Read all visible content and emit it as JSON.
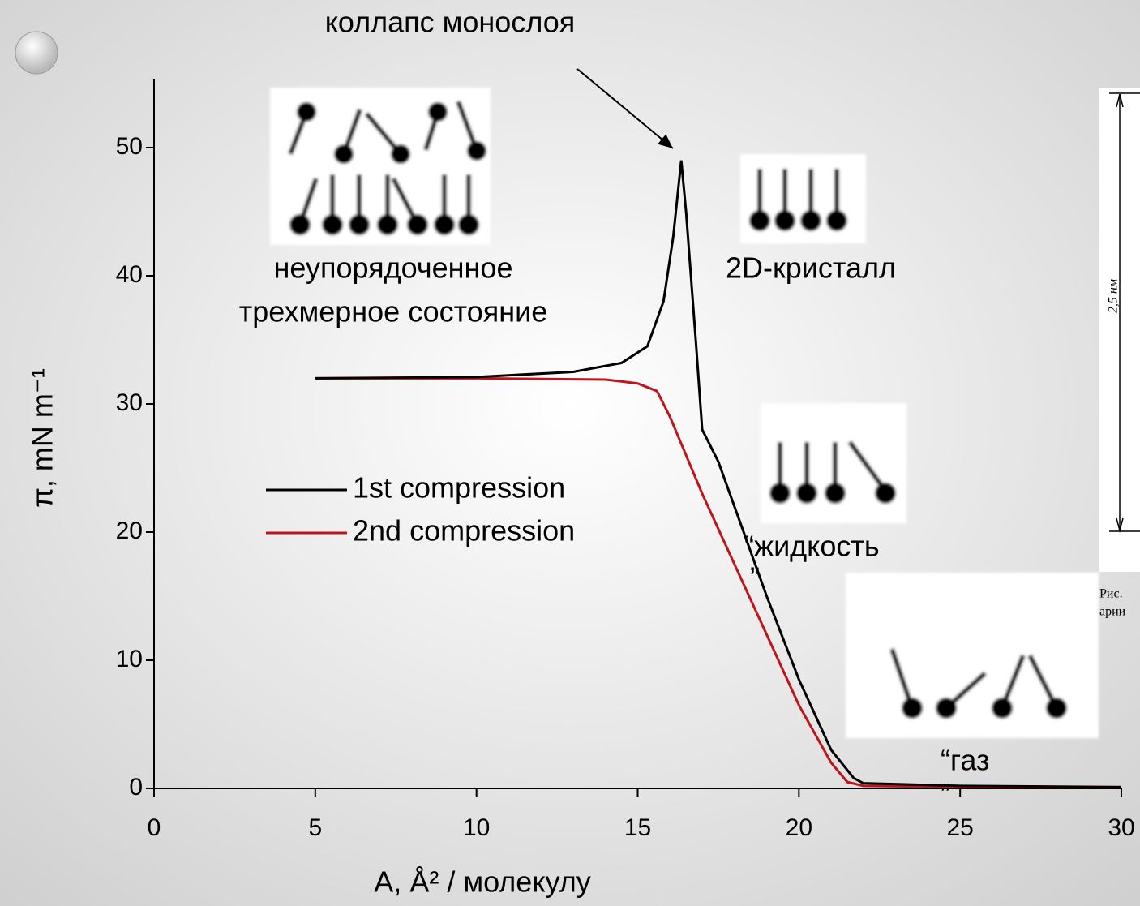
{
  "chart_data": {
    "type": "line",
    "x_label": "A, Å² / молекулу",
    "y_label": "π, mN m⁻¹",
    "xlim": [
      0,
      30
    ],
    "xticks": [
      0,
      5,
      10,
      15,
      20,
      25,
      30
    ],
    "ylim": [
      0,
      55
    ],
    "yticks": [
      0,
      10,
      20,
      30,
      40,
      50
    ],
    "legend": "left",
    "series": [
      {
        "name": "1st compression",
        "color": "#000000",
        "x": [
          5,
          10,
          13,
          14.5,
          15.3,
          15.8,
          16.1,
          16.35,
          16.5,
          16.8,
          17.0,
          17.5,
          18,
          19,
          20,
          21,
          21.7,
          22,
          25,
          30
        ],
        "values": [
          32,
          32.1,
          32.5,
          33.2,
          34.5,
          38,
          43,
          49,
          45,
          35,
          28,
          25.5,
          22,
          15,
          8.5,
          3,
          0.8,
          0.4,
          0.2,
          0.1
        ]
      },
      {
        "name": "2nd compression",
        "color": "#c0141c",
        "x": [
          5,
          10,
          14,
          15,
          15.6,
          16,
          16.5,
          17,
          18,
          19,
          20,
          21,
          21.5,
          22,
          25,
          30
        ],
        "values": [
          32,
          32,
          31.9,
          31.6,
          31,
          29,
          26,
          23,
          17.5,
          12,
          6.5,
          2,
          0.5,
          0.2,
          0.1,
          0.1
        ]
      }
    ],
    "annotations": [
      "коллапс монослоя",
      "неупорядоченное",
      "трехмерное состояние",
      "2D-кристалл",
      "“жидкость",
      "”",
      "“газ",
      "”"
    ]
  },
  "figure": {
    "label": "2,5 нм",
    "caption": [
      "Рис.",
      "арии"
    ]
  }
}
